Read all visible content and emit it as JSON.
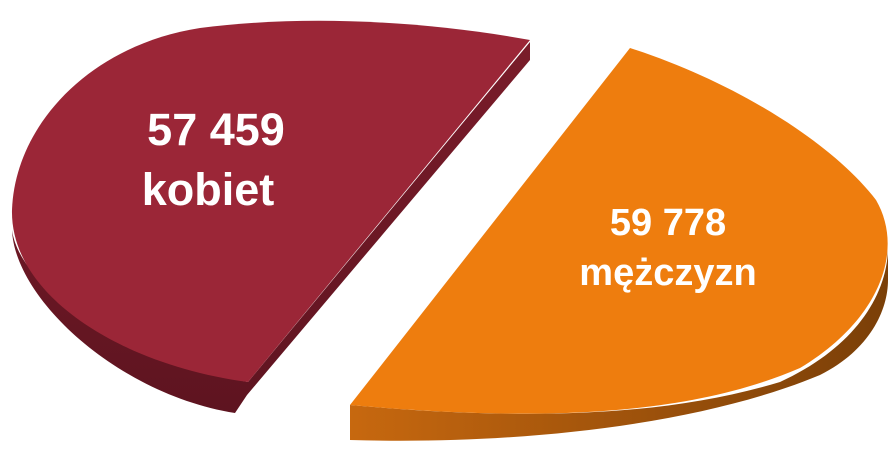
{
  "chart_data": {
    "type": "pie",
    "style": "3d-exploded",
    "slices": [
      {
        "value": 57459,
        "value_label": "57 459",
        "category": "kobiet",
        "color": "#9b2637",
        "side_color": "#6d1a26"
      },
      {
        "value": 59778,
        "value_label": "59 778",
        "category": "mężczyzn",
        "color": "#ee7d0e",
        "side_color": "#8a4a0c"
      }
    ]
  }
}
